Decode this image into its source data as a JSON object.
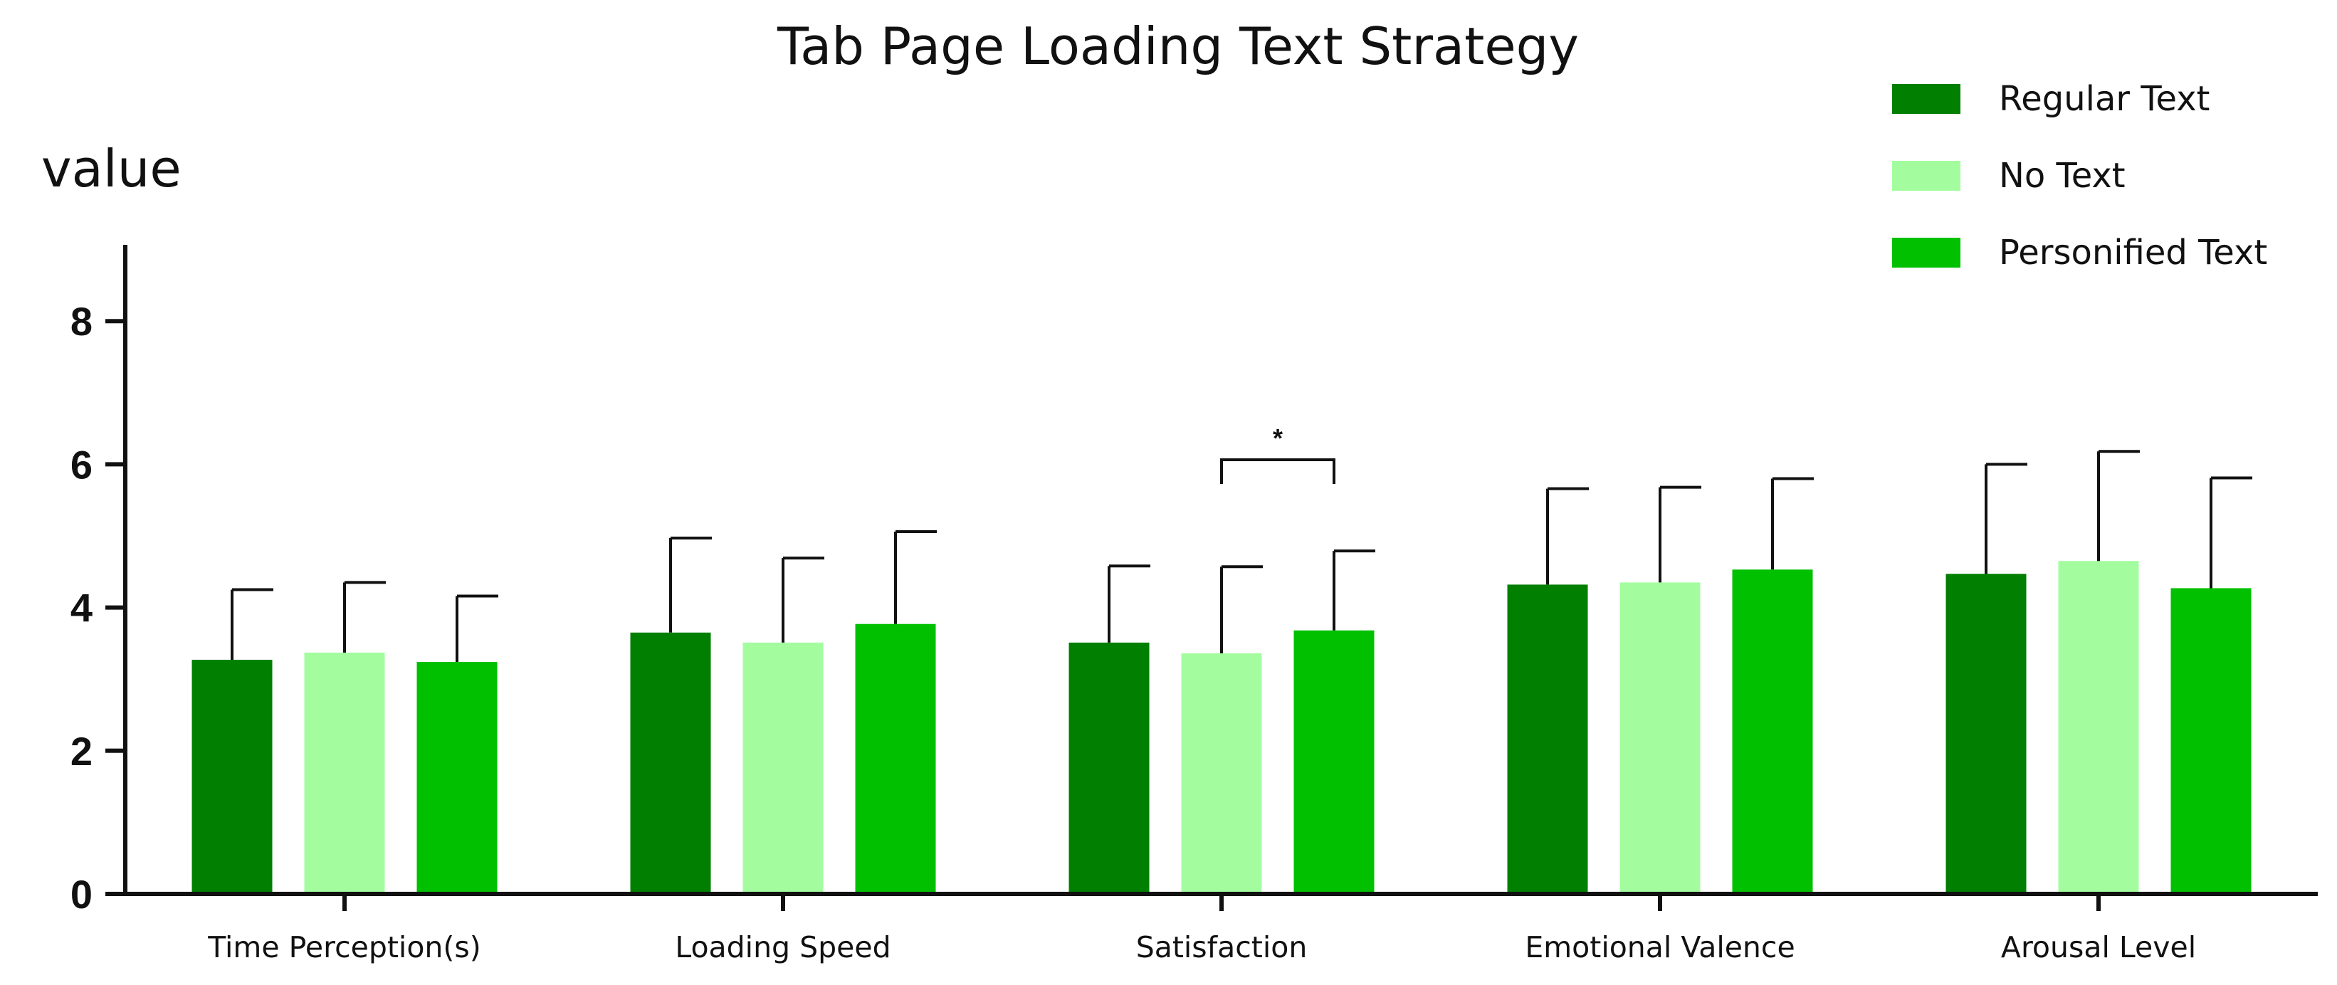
{
  "chart_data": {
    "type": "bar",
    "title": "Tab Page Loading Text Strategy",
    "ylabel": "value",
    "xlabel": "",
    "ylim": [
      0,
      9
    ],
    "yticks": [
      0,
      2,
      4,
      6,
      8
    ],
    "grid": false,
    "legend_position": "top-right",
    "categories": [
      "Time Perception(s)",
      "Loading Speed",
      "Satisfaction",
      "Emotional Valence",
      "Arousal Level"
    ],
    "series": [
      {
        "name": "Regular Text",
        "color": "#007f00",
        "values": [
          3.27,
          3.65,
          3.51,
          4.32,
          4.47
        ],
        "errors": [
          0.98,
          1.32,
          1.07,
          1.34,
          1.53
        ]
      },
      {
        "name": "No Text",
        "color": "#a3fd9f",
        "values": [
          3.37,
          3.51,
          3.36,
          4.35,
          4.65
        ],
        "errors": [
          0.98,
          1.18,
          1.21,
          1.33,
          1.53
        ]
      },
      {
        "name": "Personified Text",
        "color": "#00c000",
        "values": [
          3.24,
          3.77,
          3.68,
          4.53,
          4.27
        ],
        "errors": [
          0.92,
          1.29,
          1.11,
          1.27,
          1.54
        ]
      }
    ],
    "annotations": [
      {
        "text": "*",
        "category": "Satisfaction",
        "from_series": 1,
        "to_series": 2
      }
    ]
  }
}
